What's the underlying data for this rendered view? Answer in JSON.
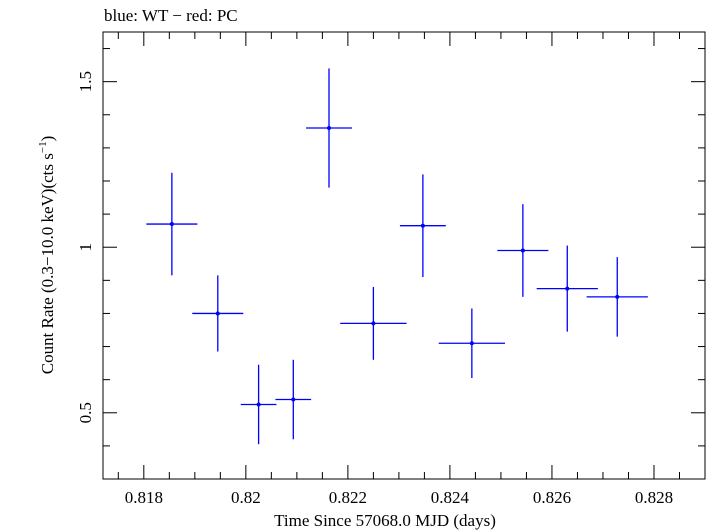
{
  "chart_data": {
    "type": "scatter",
    "title": "blue: WT − red: PC",
    "xlabel": "Time Since 57068.0 MJD (days)",
    "ylabel_main": "Count Rate (0.3−10.0 keV)(cts s",
    "ylabel_sup": "−1",
    "ylabel_close": ")",
    "xlim": [
      0.8172,
      0.829
    ],
    "ylim": [
      0.3,
      1.65
    ],
    "xticks": [
      0.818,
      0.82,
      0.822,
      0.824,
      0.826,
      0.828
    ],
    "xtick_labels": [
      "0.818",
      "0.82",
      "0.822",
      "0.824",
      "0.826",
      "0.828"
    ],
    "yticks": [
      0.5,
      1.0,
      1.5
    ],
    "ytick_labels": [
      "0.5",
      "1",
      "1.5"
    ],
    "grid": false,
    "series": [
      {
        "color": "#0000ff",
        "points": [
          {
            "x": 0.81855,
            "xerr": 0.0005,
            "y": 1.07,
            "yerr": 0.155
          },
          {
            "x": 0.81945,
            "xerr": 0.0005,
            "y": 0.8,
            "yerr": 0.115
          },
          {
            "x": 0.82025,
            "xerr": 0.00035,
            "y": 0.525,
            "yerr": 0.12
          },
          {
            "x": 0.82093,
            "xerr": 0.00035,
            "y": 0.54,
            "yerr": 0.12
          },
          {
            "x": 0.82163,
            "xerr": 0.00045,
            "y": 1.36,
            "yerr": 0.18
          },
          {
            "x": 0.8225,
            "xerr": 0.00065,
            "y": 0.77,
            "yerr": 0.11
          },
          {
            "x": 0.82347,
            "xerr": 0.00045,
            "y": 1.065,
            "yerr": 0.155
          },
          {
            "x": 0.82443,
            "xerr": 0.00065,
            "y": 0.71,
            "yerr": 0.105
          },
          {
            "x": 0.82543,
            "xerr": 0.0005,
            "y": 0.99,
            "yerr": 0.14
          },
          {
            "x": 0.8263,
            "xerr": 0.0006,
            "y": 0.875,
            "yerr": 0.13
          },
          {
            "x": 0.82728,
            "xerr": 0.0006,
            "y": 0.85,
            "yerr": 0.12
          }
        ]
      }
    ]
  }
}
